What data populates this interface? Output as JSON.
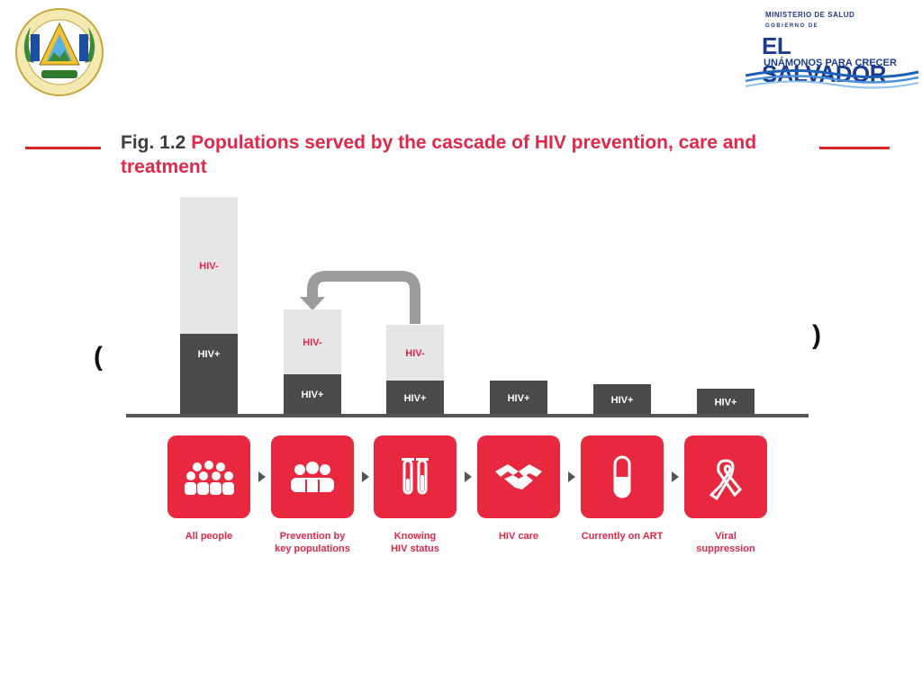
{
  "header": {
    "ministry": "MINISTERIO DE SALUD",
    "gobierno": "GOBIERNO DE",
    "country": "EL SALVADOR",
    "motto": "UNÁMONOS PARA CRECER",
    "seal_text": "REPÚBLICA DE EL SALVADOR EN LA AMÉRICA CENTRAL"
  },
  "figure": {
    "label": "Fig. 1.2",
    "title": "Populations served by the cascade of HIV prevention, care and treatment"
  },
  "colors": {
    "accent": "#e8283f",
    "title_red": "#e0284a",
    "hiv_pos": "#4a4a4a",
    "hiv_neg": "#e6e6e6"
  },
  "chart_data": {
    "type": "bar",
    "stacked": true,
    "categories": [
      "All people",
      "Prevention by key populations",
      "Knowing HIV status",
      "HIV care",
      "Currently on ART",
      "Viral suppression"
    ],
    "series": [
      {
        "name": "HIV+",
        "values": [
          90,
          45,
          38,
          38,
          34,
          29
        ]
      },
      {
        "name": "HIV-",
        "values": [
          152,
          72,
          62,
          0,
          0,
          0
        ]
      }
    ],
    "ylim": [
      0,
      242
    ],
    "axis_labels_shown": false,
    "legend": "none",
    "annotation": "arrow from Knowing HIV status back to Prevention by key populations"
  },
  "steps": [
    {
      "label_lines": [
        "All people"
      ],
      "icon": "people-group-icon"
    },
    {
      "label_lines": [
        "Prevention by",
        "key populations"
      ],
      "icon": "key-population-icon"
    },
    {
      "label_lines": [
        "Knowing",
        "HIV status"
      ],
      "icon": "test-tubes-icon"
    },
    {
      "label_lines": [
        "HIV care"
      ],
      "icon": "handshake-icon"
    },
    {
      "label_lines": [
        "Currently on ART"
      ],
      "icon": "pill-capsule-icon"
    },
    {
      "label_lines": [
        "Viral",
        "suppression"
      ],
      "icon": "red-ribbon-icon"
    }
  ]
}
